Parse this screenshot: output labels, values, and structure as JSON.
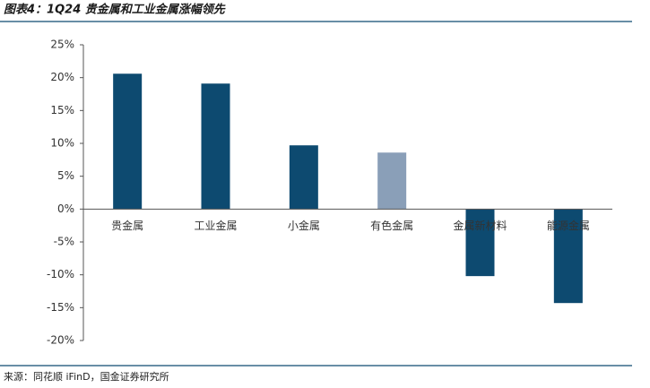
{
  "chart_data": {
    "type": "bar",
    "title": "图表4：1Q24 贵金属和工业金属涨幅领先",
    "source": "来源：同花顺 iFinD，国金证券研究所",
    "categories": [
      "贵金属",
      "工业金属",
      "小金属",
      "有色金属",
      "金属新材料",
      "能源金属"
    ],
    "values": [
      20.6,
      19.1,
      9.7,
      8.6,
      -10.2,
      -14.3
    ],
    "colors": [
      "#0d4a70",
      "#0d4a70",
      "#0d4a70",
      "#8a9fb8",
      "#0d4a70",
      "#0d4a70"
    ],
    "ylim": [
      -20,
      25
    ],
    "yticks": [
      {
        "value": -20,
        "label": "-20%"
      },
      {
        "value": -15,
        "label": "-15%"
      },
      {
        "value": -10,
        "label": "-10%"
      },
      {
        "value": -5,
        "label": "-5%"
      },
      {
        "value": 0,
        "label": "0%"
      },
      {
        "value": 5,
        "label": "5%"
      },
      {
        "value": 10,
        "label": "10%"
      },
      {
        "value": 15,
        "label": "15%"
      },
      {
        "value": 20,
        "label": "20%"
      },
      {
        "value": 25,
        "label": "25%"
      }
    ],
    "grid": false
  }
}
